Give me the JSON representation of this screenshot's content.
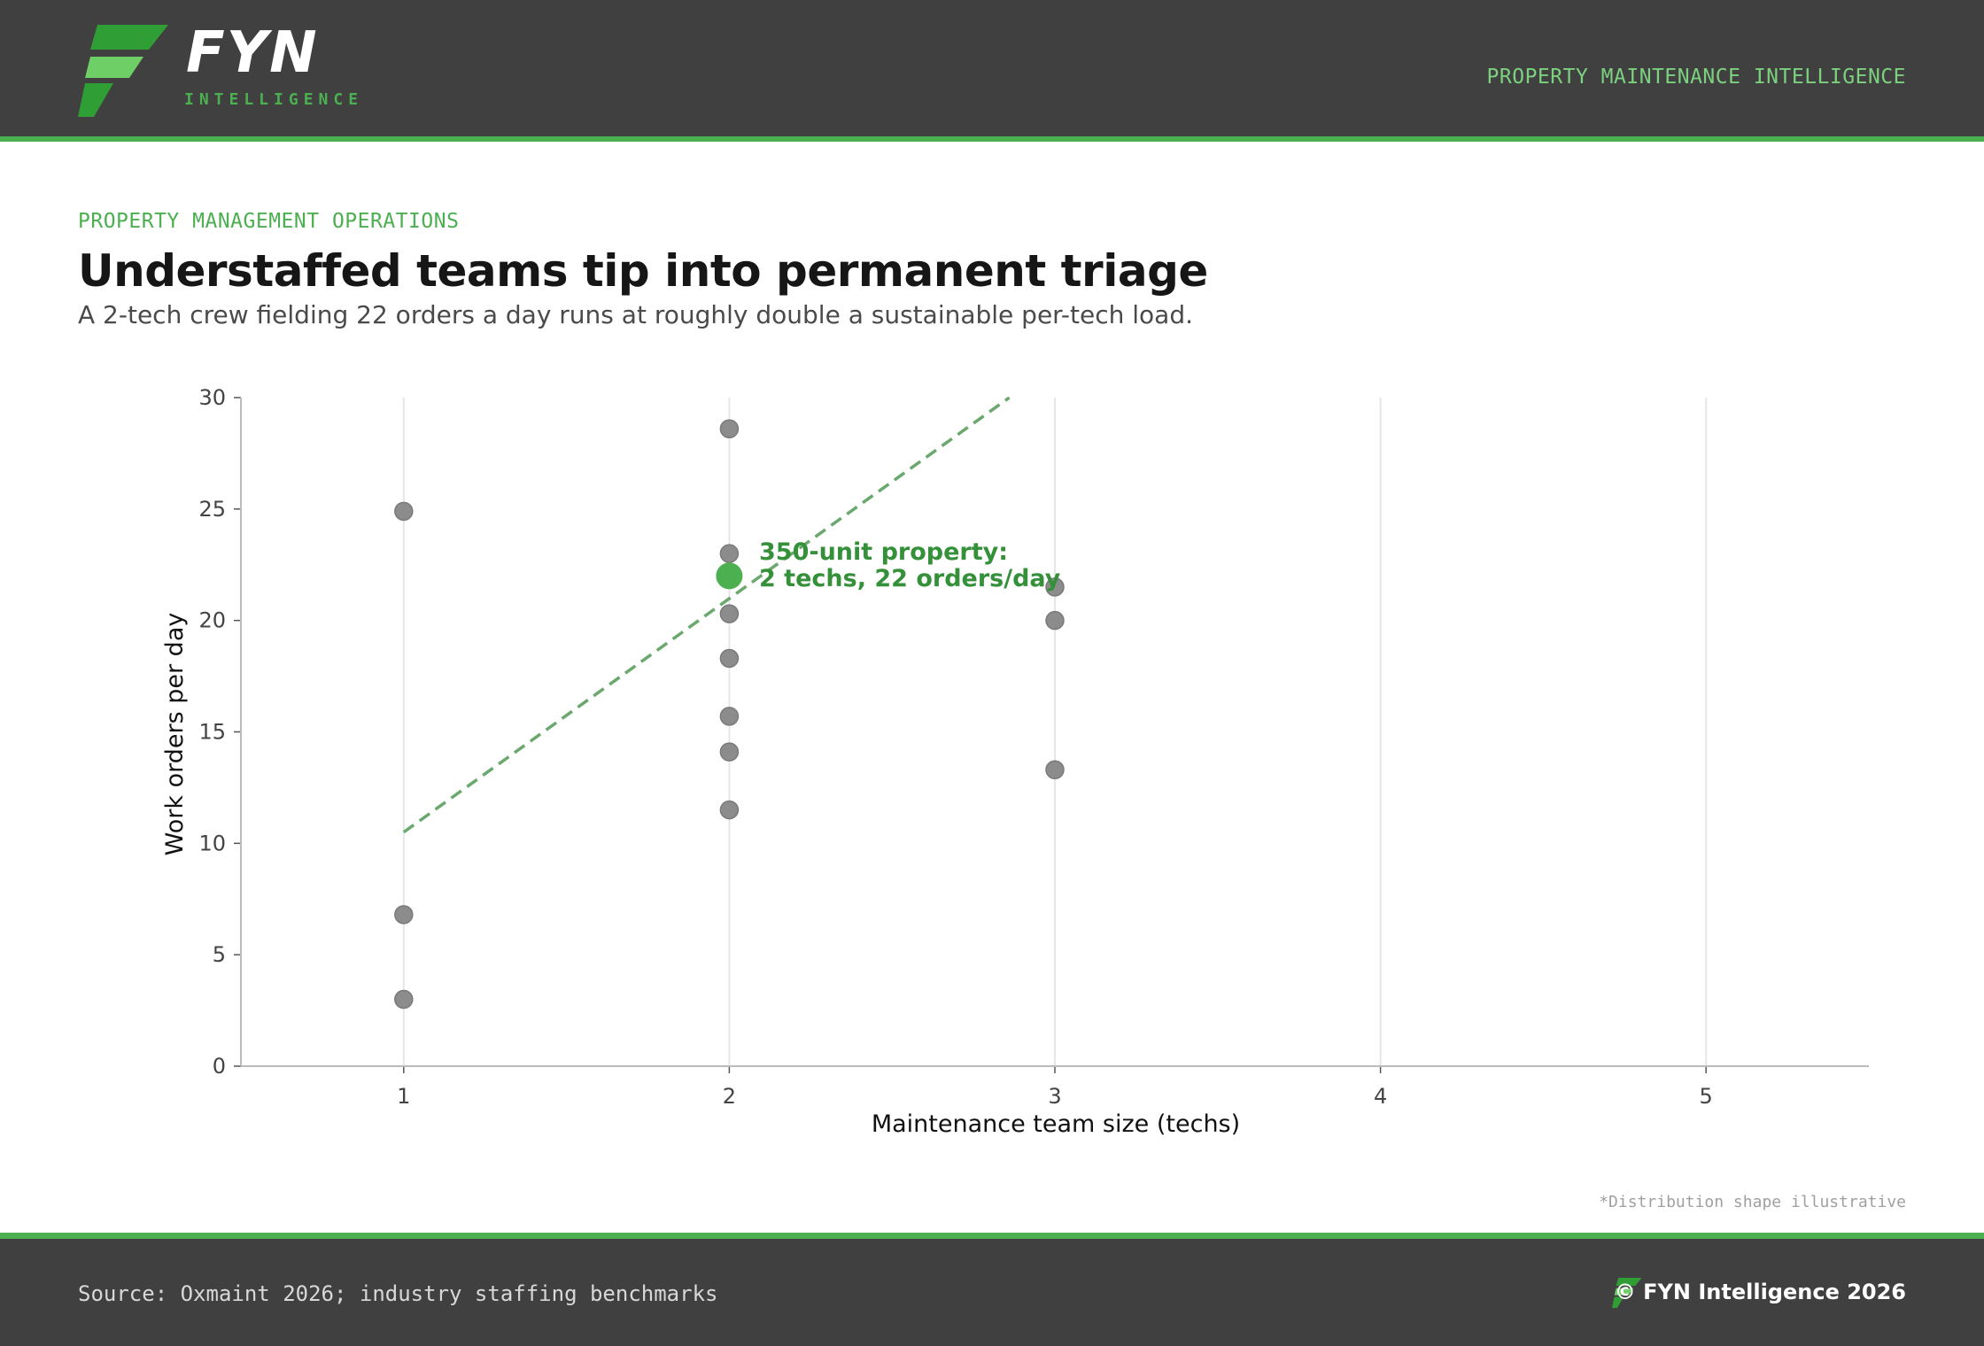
{
  "header": {
    "brand_name": "FYN",
    "brand_sub": "INTELLIGENCE",
    "tagline": "PROPERTY MAINTENANCE INTELLIGENCE"
  },
  "kicker": "PROPERTY MANAGEMENT OPERATIONS",
  "title": "Understaffed teams tip into permanent triage",
  "subtitle": "A 2-tech crew fielding 22 orders a day runs at roughly double a sustainable per-tech load.",
  "note": "*Distribution shape illustrative",
  "footer": {
    "source": "Source: Oxmaint 2026; industry staffing benchmarks",
    "copyright": "© FYN Intelligence 2026"
  },
  "colors": {
    "accent": "#4caf50",
    "accent_dark": "#35903a",
    "point": "#8c8c8c",
    "trend": "#6aa86d",
    "header_bg": "#404040"
  },
  "chart_data": {
    "type": "scatter",
    "xlabel": "Maintenance team size (techs)",
    "ylabel": "Work orders per day",
    "xlim": [
      0.5,
      5.5
    ],
    "ylim": [
      0,
      30
    ],
    "xticks": [
      1,
      2,
      3,
      4,
      5
    ],
    "yticks": [
      0,
      5,
      10,
      15,
      20,
      25,
      30
    ],
    "grid": "vertical",
    "points": [
      {
        "x": 1,
        "y": 24.9
      },
      {
        "x": 1,
        "y": 6.8
      },
      {
        "x": 1,
        "y": 3.0
      },
      {
        "x": 2,
        "y": 28.6
      },
      {
        "x": 2,
        "y": 23.0
      },
      {
        "x": 2,
        "y": 20.3
      },
      {
        "x": 2,
        "y": 18.3
      },
      {
        "x": 2,
        "y": 15.7
      },
      {
        "x": 2,
        "y": 14.1
      },
      {
        "x": 2,
        "y": 11.5
      },
      {
        "x": 3,
        "y": 21.5
      },
      {
        "x": 3,
        "y": 20.0
      },
      {
        "x": 3,
        "y": 13.3
      }
    ],
    "highlight": {
      "x": 2,
      "y": 22,
      "label_line1": "350-unit property:",
      "label_line2": "2 techs, 22 orders/day"
    },
    "trend_line": {
      "x": [
        1,
        2.86
      ],
      "y": [
        10.5,
        30
      ],
      "style": "dashed"
    }
  }
}
